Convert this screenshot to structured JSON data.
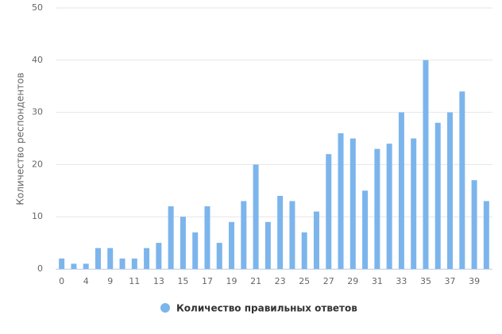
{
  "chart_data": {
    "type": "bar",
    "y_label": "Количество респондентов",
    "categories": [
      "0",
      null,
      "4",
      null,
      "9",
      null,
      "11",
      null,
      "13",
      null,
      "15",
      null,
      "17",
      null,
      "19",
      null,
      "21",
      null,
      "23",
      null,
      "25",
      null,
      "27",
      null,
      "29",
      null,
      "31",
      null,
      "33",
      null,
      "35",
      null,
      "37",
      null,
      "39",
      null
    ],
    "series": [
      {
        "name": "Количество правильных ответов",
        "color": "#7cb5ec",
        "values": [
          2,
          1,
          1,
          4,
          4,
          2,
          2,
          4,
          5,
          12,
          10,
          7,
          12,
          5,
          9,
          13,
          20,
          9,
          14,
          13,
          7,
          11,
          22,
          26,
          25,
          15,
          23,
          24,
          30,
          25,
          40,
          28,
          30,
          34,
          17,
          13
        ]
      }
    ],
    "ylim": [
      0,
      50
    ],
    "yticks": [
      0,
      10,
      20,
      30,
      40,
      50
    ],
    "grid": true,
    "legend": "bottom"
  }
}
